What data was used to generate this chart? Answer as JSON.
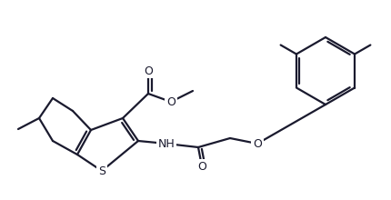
{
  "line_color": "#1a1a2e",
  "line_width": 1.6,
  "bg_color": "#ffffff",
  "figsize": [
    4.3,
    2.2
  ],
  "dpi": 100,
  "atoms": {
    "S": "S",
    "O_ester_double": "O",
    "O_ester_single": "O",
    "NH": "NH",
    "O_amide": "O",
    "O_ether": "O"
  }
}
